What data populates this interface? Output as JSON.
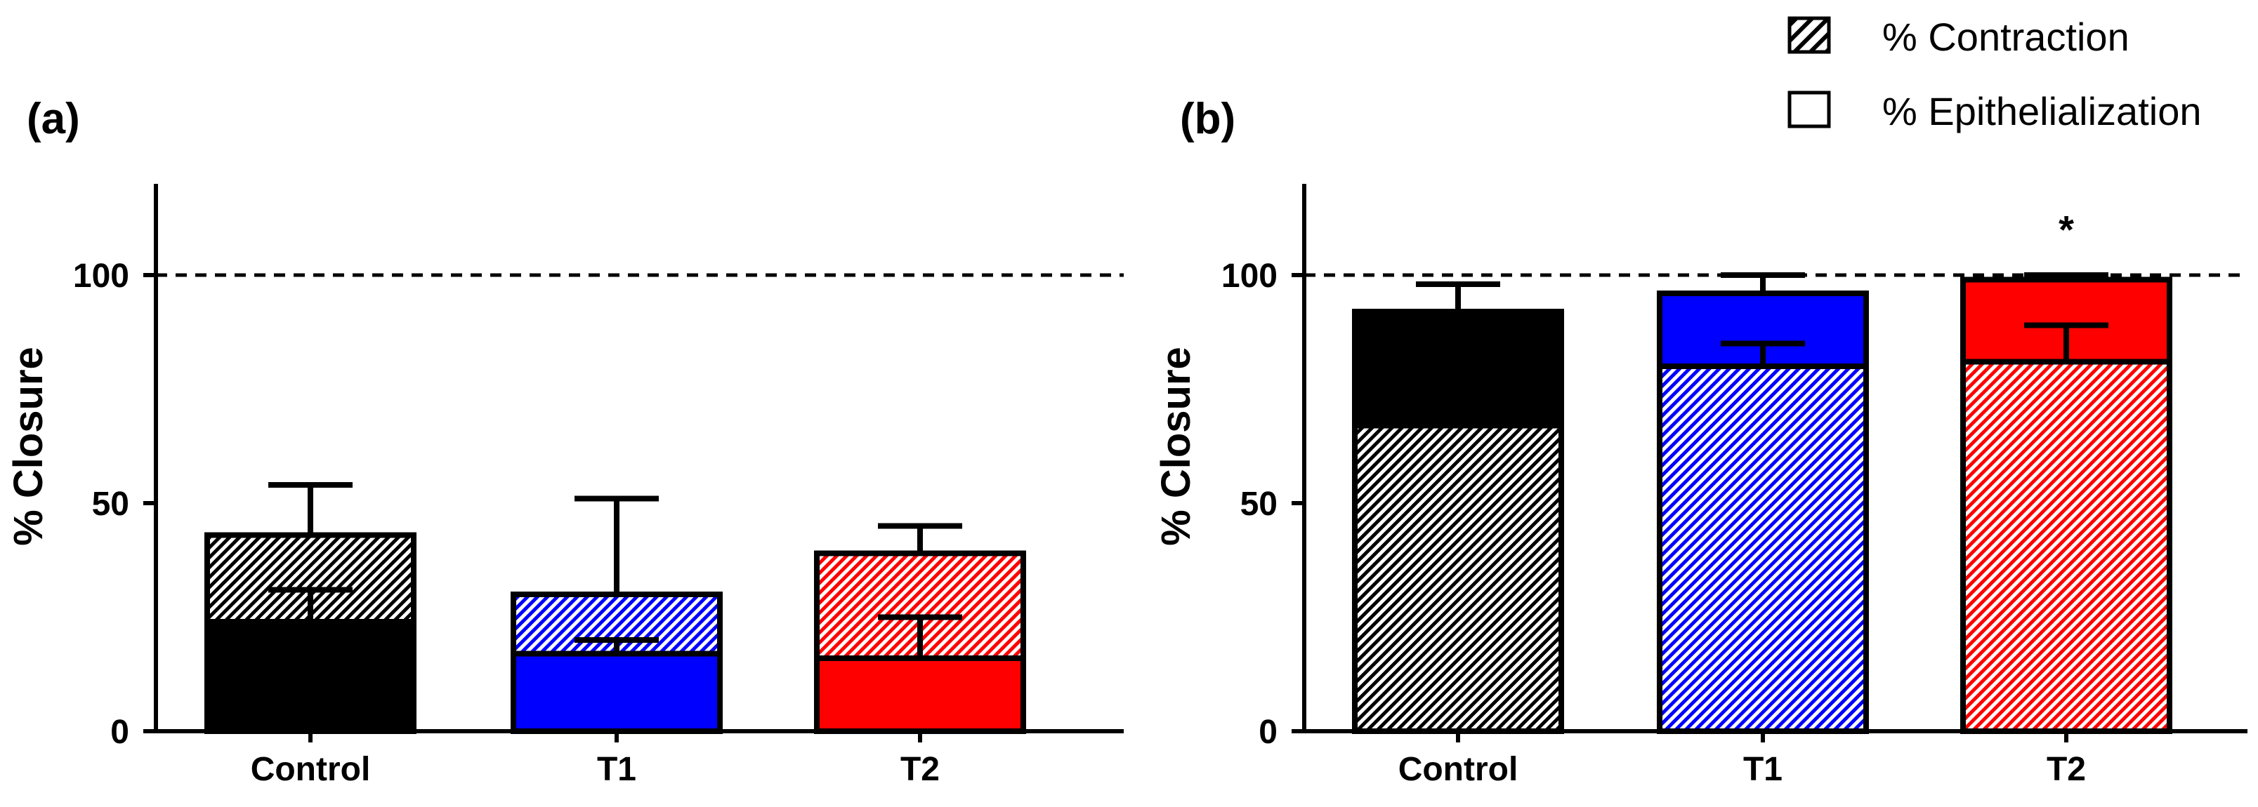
{
  "chart_data": [
    {
      "type": "bar",
      "stacked": true,
      "panel_label": "(a)",
      "categories": [
        "Control",
        "T1",
        "T2"
      ],
      "colors": [
        "#000000",
        "#0000ff",
        "#ff0000"
      ],
      "bottom_series": "% Epithelialization",
      "series": [
        {
          "name": "% Epithelialization",
          "pattern": "solid",
          "values": [
            24,
            17,
            16
          ],
          "error": [
            7,
            3,
            9
          ]
        },
        {
          "name": "% Contraction",
          "pattern": "hatched",
          "values": [
            19,
            13,
            23
          ],
          "error": [
            11,
            21,
            6
          ]
        }
      ],
      "ylabel": "% Closure",
      "xlabel": "",
      "ylim": [
        0,
        120
      ],
      "yticks": [
        0,
        50,
        100
      ],
      "reference_line": 100,
      "annotations": []
    },
    {
      "type": "bar",
      "stacked": true,
      "panel_label": "(b)",
      "categories": [
        "Control",
        "T1",
        "T2"
      ],
      "colors": [
        "#000000",
        "#0000ff",
        "#ff0000"
      ],
      "bottom_series": "% Contraction",
      "series": [
        {
          "name": "% Contraction",
          "pattern": "hatched",
          "values": [
            67,
            80,
            81
          ],
          "error": [
            0,
            5,
            8
          ]
        },
        {
          "name": "% Epithelialization",
          "pattern": "solid",
          "values": [
            25,
            16,
            18
          ],
          "error": [
            6,
            4,
            1
          ]
        }
      ],
      "ylabel": "% Closure",
      "xlabel": "",
      "ylim": [
        0,
        120
      ],
      "yticks": [
        0,
        50,
        100
      ],
      "reference_line": 100,
      "annotations": [
        {
          "category": "T2",
          "text": "*"
        }
      ]
    }
  ],
  "legend": {
    "placement": "top-right",
    "items": [
      {
        "label": "% Contraction",
        "pattern": "hatched"
      },
      {
        "label": "% Epithelialization",
        "pattern": "open"
      }
    ]
  }
}
